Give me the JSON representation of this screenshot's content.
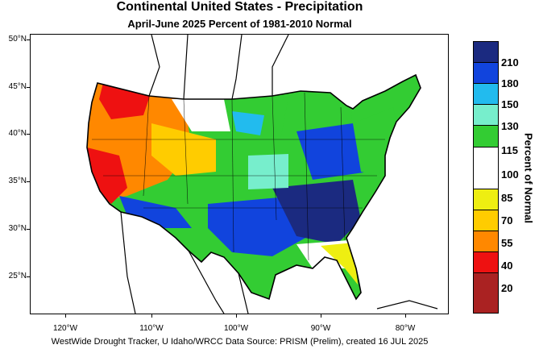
{
  "title": "Continental United States - Precipitation",
  "subtitle": "April-June 2025  Percent of 1981-2010 Normal",
  "credits": "WestWide Drought Tracker, U Idaho/WRCC Data Source: PRISM (Prelim), created 16 JUL 2025",
  "latitude_labels": [
    "50°N",
    "45°N",
    "40°N",
    "35°N",
    "30°N",
    "25°N"
  ],
  "longitude_labels": [
    "120°W",
    "110°W",
    "100°W",
    "90°W",
    "80°W"
  ],
  "colorbar": {
    "title": "Percent of Normal",
    "labels": [
      "210",
      "180",
      "150",
      "130",
      "115",
      "100",
      "85",
      "70",
      "55",
      "40",
      "20"
    ],
    "colors": [
      "#1b2a80",
      "#1144dd",
      "#22bbee",
      "#77eecc",
      "#33cc33",
      "#ffffff",
      "#eeee11",
      "#ffcc00",
      "#ff8800",
      "#ee1111",
      "#aa2222"
    ]
  }
}
